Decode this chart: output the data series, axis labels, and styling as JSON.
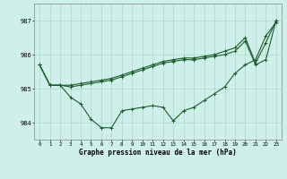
{
  "title": "Graphe pression niveau de la mer (hPa)",
  "background_color": "#cff0ea",
  "grid_color": "#aad8cc",
  "line_color": "#1a5c2a",
  "ylim": [
    983.5,
    987.5
  ],
  "yticks": [
    984,
    985,
    986,
    987
  ],
  "hours": [
    0,
    1,
    2,
    3,
    4,
    5,
    6,
    7,
    8,
    9,
    10,
    11,
    12,
    13,
    14,
    15,
    16,
    17,
    18,
    19,
    20,
    21,
    22,
    23
  ],
  "line_upper": [
    985.7,
    985.1,
    985.1,
    985.1,
    985.15,
    985.2,
    985.25,
    985.3,
    985.4,
    985.5,
    985.6,
    985.7,
    985.8,
    985.85,
    985.9,
    985.9,
    985.95,
    986.0,
    986.1,
    986.2,
    986.5,
    985.75,
    986.35,
    987.0
  ],
  "line_mid": [
    985.7,
    985.1,
    985.1,
    985.05,
    985.1,
    985.15,
    985.2,
    985.25,
    985.35,
    985.45,
    985.55,
    985.65,
    985.75,
    985.8,
    985.85,
    985.85,
    985.9,
    985.95,
    986.0,
    986.1,
    986.4,
    985.7,
    985.85,
    987.0
  ],
  "line_lower": [
    985.7,
    985.1,
    985.1,
    984.75,
    984.55,
    984.1,
    983.85,
    983.85,
    984.35,
    984.4,
    984.45,
    984.5,
    984.45,
    984.05,
    984.35,
    984.45,
    984.65,
    984.85,
    985.05,
    985.45,
    985.7,
    985.85,
    986.55,
    986.95
  ]
}
